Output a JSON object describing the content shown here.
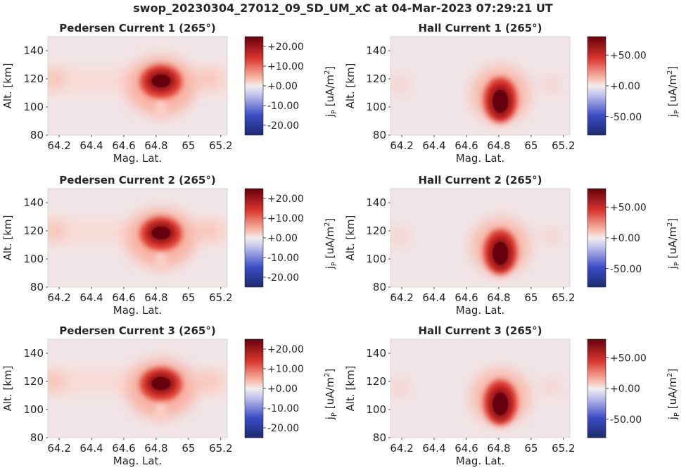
{
  "figure": {
    "title": "swop_20230304_27012_09_SD_UM_xC at 04-Mar-2023 07:29:21 UT"
  },
  "colors": {
    "cmap_low": "#2a2a8c",
    "cmap_mid": "#f3e7e9",
    "cmap_high": "#67000d",
    "background": "#f1e4e6"
  },
  "chart_data": [
    {
      "type": "heatmap",
      "title": "Pedersen Current 1 (265°)",
      "xlabel": "Mag. Lat.",
      "ylabel": "Alt. [km]",
      "xlim": [
        64.13,
        65.24
      ],
      "ylim": [
        80,
        150
      ],
      "xticks": [
        "64.2",
        "64.4",
        "64.6",
        "64.8",
        "65",
        "65.2"
      ],
      "xtick_values": [
        64.2,
        64.4,
        64.6,
        64.8,
        65,
        65.2
      ],
      "yticks": [
        "80",
        "100",
        "120",
        "140"
      ],
      "ytick_values": [
        80,
        100,
        120,
        140
      ],
      "colorbar": {
        "label": "j_P [uA/m^2]",
        "label_main": "j",
        "label_sub": "P",
        "label_unit": " [uA/m",
        "label_sup": "2",
        "label_end": "]",
        "range": [
          -25,
          25
        ],
        "ticks": [
          "+20.00",
          "+10.00",
          "+0.00",
          "-10.00",
          "-20.00"
        ],
        "tick_values": [
          20,
          10,
          0,
          -10,
          -20
        ]
      },
      "peak": {
        "x": 64.83,
        "y": 118,
        "value": 25
      }
    },
    {
      "type": "heatmap",
      "title": "Hall Current 1 (265°)",
      "xlabel": "Mag. Lat.",
      "ylabel": "Alt. [km]",
      "xlim": [
        64.13,
        65.24
      ],
      "ylim": [
        80,
        150
      ],
      "xticks": [
        "64.2",
        "64.4",
        "64.6",
        "64.8",
        "65",
        "65.2"
      ],
      "xtick_values": [
        64.2,
        64.4,
        64.6,
        64.8,
        65,
        65.2
      ],
      "yticks": [
        "80",
        "100",
        "120",
        "140"
      ],
      "ytick_values": [
        80,
        100,
        120,
        140
      ],
      "colorbar": {
        "label": "j_P [uA/m^2]",
        "label_main": "j",
        "label_sub": "P",
        "label_unit": " [uA/m",
        "label_sup": "2",
        "label_end": "]",
        "range": [
          -80,
          80
        ],
        "ticks": [
          "+50.00",
          "+0.00",
          "-50.00"
        ],
        "tick_values": [
          50,
          0,
          -50
        ]
      },
      "peak": {
        "x": 64.81,
        "y": 106,
        "value": 80
      }
    },
    {
      "type": "heatmap",
      "title": "Pedersen Current 2 (265°)",
      "xlabel": "Mag. Lat.",
      "ylabel": "Alt. [km]",
      "xlim": [
        64.13,
        65.24
      ],
      "ylim": [
        80,
        150
      ],
      "xticks": [
        "64.2",
        "64.4",
        "64.6",
        "64.8",
        "65",
        "65.2"
      ],
      "xtick_values": [
        64.2,
        64.4,
        64.6,
        64.8,
        65,
        65.2
      ],
      "yticks": [
        "80",
        "100",
        "120",
        "140"
      ],
      "ytick_values": [
        80,
        100,
        120,
        140
      ],
      "colorbar": {
        "label": "j_P [uA/m^2]",
        "label_main": "j",
        "label_sub": "P",
        "label_unit": " [uA/m",
        "label_sup": "2",
        "label_end": "]",
        "range": [
          -25,
          25
        ],
        "ticks": [
          "+20.00",
          "+10.00",
          "+0.00",
          "-10.00",
          "-20.00"
        ],
        "tick_values": [
          20,
          10,
          0,
          -10,
          -20
        ]
      },
      "peak": {
        "x": 64.83,
        "y": 118,
        "value": 25
      }
    },
    {
      "type": "heatmap",
      "title": "Hall Current 2 (265°)",
      "xlabel": "Mag. Lat.",
      "ylabel": "Alt. [km]",
      "xlim": [
        64.13,
        65.24
      ],
      "ylim": [
        80,
        150
      ],
      "xticks": [
        "64.2",
        "64.4",
        "64.6",
        "64.8",
        "65",
        "65.2"
      ],
      "xtick_values": [
        64.2,
        64.4,
        64.6,
        64.8,
        65,
        65.2
      ],
      "yticks": [
        "80",
        "100",
        "120",
        "140"
      ],
      "ytick_values": [
        80,
        100,
        120,
        140
      ],
      "colorbar": {
        "label": "j_P [uA/m^2]",
        "label_main": "j",
        "label_sub": "P",
        "label_unit": " [uA/m",
        "label_sup": "2",
        "label_end": "]",
        "range": [
          -80,
          80
        ],
        "ticks": [
          "+50.00",
          "+0.00",
          "-50.00"
        ],
        "tick_values": [
          50,
          0,
          -50
        ]
      },
      "peak": {
        "x": 64.81,
        "y": 106,
        "value": 80
      }
    },
    {
      "type": "heatmap",
      "title": "Pedersen Current 3 (265°)",
      "xlabel": "Mag. Lat.",
      "ylabel": "Alt. [km]",
      "xlim": [
        64.13,
        65.24
      ],
      "ylim": [
        80,
        150
      ],
      "xticks": [
        "64.2",
        "64.4",
        "64.6",
        "64.8",
        "65",
        "65.2"
      ],
      "xtick_values": [
        64.2,
        64.4,
        64.6,
        64.8,
        65,
        65.2
      ],
      "yticks": [
        "80",
        "100",
        "120",
        "140"
      ],
      "ytick_values": [
        80,
        100,
        120,
        140
      ],
      "colorbar": {
        "label": "j_P [uA/m^2]",
        "label_main": "j",
        "label_sub": "P",
        "label_unit": " [uA/m",
        "label_sup": "2",
        "label_end": "]",
        "range": [
          -25,
          25
        ],
        "ticks": [
          "+20.00",
          "+10.00",
          "+0.00",
          "-10.00",
          "-20.00"
        ],
        "tick_values": [
          20,
          10,
          0,
          -10,
          -20
        ]
      },
      "peak": {
        "x": 64.83,
        "y": 118,
        "value": 25
      }
    },
    {
      "type": "heatmap",
      "title": "Hall Current 3 (265°)",
      "xlabel": "Mag. Lat.",
      "ylabel": "Alt. [km]",
      "xlim": [
        64.13,
        65.24
      ],
      "ylim": [
        80,
        150
      ],
      "xticks": [
        "64.2",
        "64.4",
        "64.6",
        "64.8",
        "65",
        "65.2"
      ],
      "xtick_values": [
        64.2,
        64.4,
        64.6,
        64.8,
        65,
        65.2
      ],
      "yticks": [
        "80",
        "100",
        "120",
        "140"
      ],
      "ytick_values": [
        80,
        100,
        120,
        140
      ],
      "colorbar": {
        "label": "j_P [uA/m^2]",
        "label_main": "j",
        "label_sub": "P",
        "label_unit": " [uA/m",
        "label_sup": "2",
        "label_end": "]",
        "range": [
          -80,
          80
        ],
        "ticks": [
          "+50.00",
          "+0.00",
          "-50.00"
        ],
        "tick_values": [
          50,
          0,
          -50
        ]
      },
      "peak": {
        "x": 64.81,
        "y": 106,
        "value": 80
      }
    }
  ]
}
